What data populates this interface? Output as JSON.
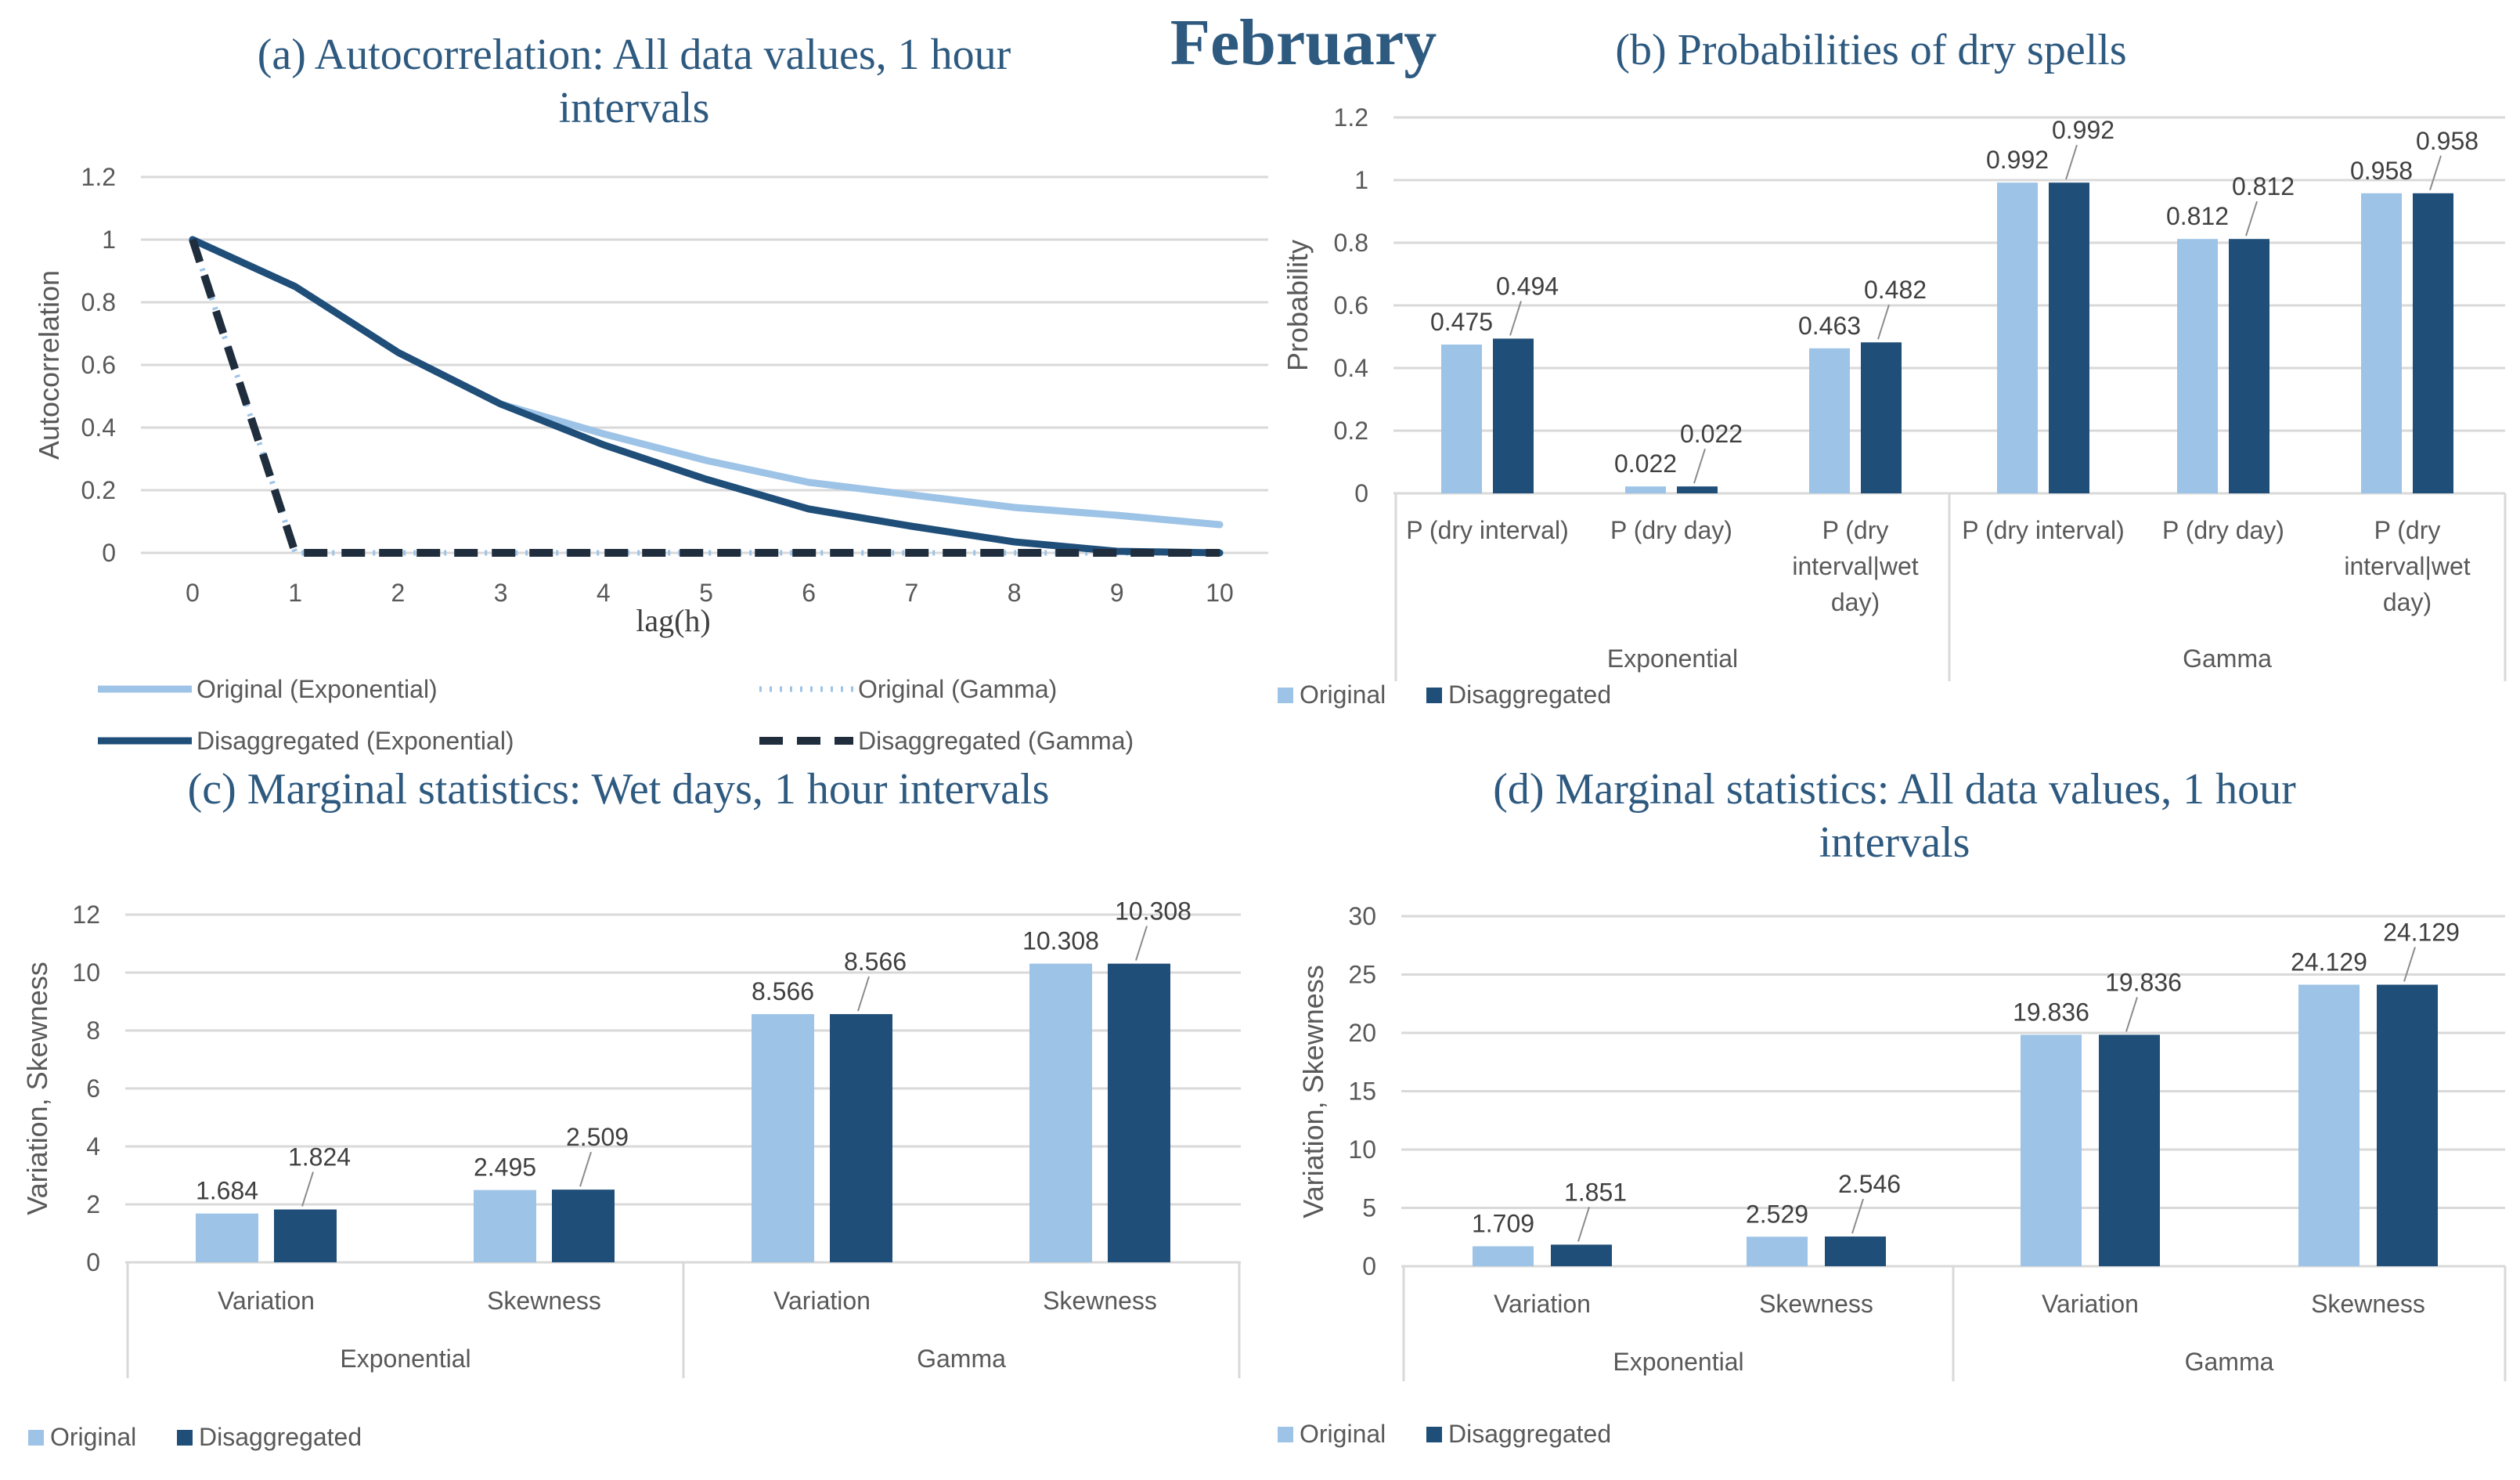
{
  "main_title": "February",
  "colors": {
    "title": "#2E5a80",
    "original": "#9DC3E6",
    "disaggregated": "#1F4E79",
    "grid": "#D9D9D9",
    "axis_text": "#595959",
    "label_text": "#404040"
  },
  "chart_data": [
    {
      "id": "a",
      "type": "line",
      "title": "(a) Autocorrelation: All data values, 1 hour intervals",
      "title_lines": [
        "(a) Autocorrelation: All data values, 1 hour",
        "intervals"
      ],
      "xlabel": "lag(h)",
      "ylabel": "Autocorrelation",
      "x": [
        0,
        1,
        2,
        3,
        4,
        5,
        6,
        7,
        8,
        9,
        10
      ],
      "x_ticks": [
        "0",
        "1",
        "2",
        "3",
        "4",
        "5",
        "6",
        "7",
        "8",
        "9",
        "10"
      ],
      "y_ticks": [
        "0",
        "0.2",
        "0.4",
        "0.6",
        "0.8",
        "1",
        "1.2"
      ],
      "ylim": [
        0,
        1.2
      ],
      "series": [
        {
          "name": "Original (Exponential)",
          "style": "solid-light",
          "values": [
            1.0,
            0.85,
            0.64,
            0.475,
            0.38,
            0.295,
            0.225,
            0.185,
            0.145,
            0.12,
            0.09
          ]
        },
        {
          "name": "Original (Gamma)",
          "style": "dotted-light",
          "values": [
            1.0,
            0,
            0,
            0,
            0,
            0,
            0,
            0,
            0,
            0,
            0
          ]
        },
        {
          "name": "Disaggregated (Exponential)",
          "style": "solid-dark",
          "values": [
            1.0,
            0.85,
            0.64,
            0.475,
            0.345,
            0.235,
            0.14,
            0.085,
            0.035,
            0.005,
            0.0
          ]
        },
        {
          "name": "Disaggregated (Gamma)",
          "style": "dashed-dark",
          "values": [
            1.0,
            0,
            0,
            0,
            0,
            0,
            0,
            0,
            0,
            0,
            0
          ]
        }
      ],
      "legend": "bottom"
    },
    {
      "id": "b",
      "type": "bar",
      "title": "(b) Probabilities of dry spells",
      "title_lines": [
        "(b) Probabilities of dry spells"
      ],
      "ylabel": "Probability",
      "y_ticks": [
        "0",
        "0.2",
        "0.4",
        "0.6",
        "0.8",
        "1",
        "1.2"
      ],
      "ylim": [
        0,
        1.2
      ],
      "groups": [
        "Exponential",
        "Gamma"
      ],
      "categories": [
        [
          "P (dry interval)"
        ],
        [
          "P (dry day)"
        ],
        [
          "P (dry",
          "interval|wet",
          "day)"
        ],
        [
          "P (dry interval)"
        ],
        [
          "P (dry day)"
        ],
        [
          "P (dry",
          "interval|wet",
          "day)"
        ]
      ],
      "series": [
        {
          "name": "Original",
          "values": [
            0.475,
            0.022,
            0.463,
            0.992,
            0.812,
            0.958
          ],
          "labels": [
            "0.475",
            "0.022",
            "0.463",
            "0.992",
            "0.812",
            "0.958"
          ]
        },
        {
          "name": "Disaggregated",
          "values": [
            0.494,
            0.022,
            0.482,
            0.992,
            0.812,
            0.958
          ],
          "labels": [
            "0.494",
            "0.022",
            "0.482",
            "0.992",
            "0.812",
            "0.958"
          ]
        }
      ],
      "legend": "bottom-left"
    },
    {
      "id": "c",
      "type": "bar",
      "title": "(c) Marginal statistics: Wet days, 1 hour intervals",
      "title_lines": [
        "(c) Marginal statistics: Wet days, 1 hour intervals"
      ],
      "ylabel": "Variation, Skewness",
      "y_ticks": [
        "0",
        "2",
        "4",
        "6",
        "8",
        "10",
        "12"
      ],
      "ylim": [
        0,
        12
      ],
      "groups": [
        "Exponential",
        "Gamma"
      ],
      "categories": [
        [
          "Variation"
        ],
        [
          "Skewness"
        ],
        [
          "Variation"
        ],
        [
          "Skewness"
        ]
      ],
      "series": [
        {
          "name": "Original",
          "values": [
            1.684,
            2.495,
            8.566,
            10.308
          ],
          "labels": [
            "1.684",
            "2.495",
            "8.566",
            "10.308"
          ]
        },
        {
          "name": "Disaggregated",
          "values": [
            1.824,
            2.509,
            8.566,
            10.308
          ],
          "labels": [
            "1.824",
            "2.509",
            "8.566",
            "10.308"
          ]
        }
      ],
      "legend": "bottom-left"
    },
    {
      "id": "d",
      "type": "bar",
      "title": "(d) Marginal statistics: All data values, 1 hour intervals",
      "title_lines": [
        "(d) Marginal statistics: All data values, 1 hour",
        "intervals"
      ],
      "ylabel": "Variation, Skewness",
      "y_ticks": [
        "0",
        "5",
        "10",
        "15",
        "20",
        "25",
        "30"
      ],
      "ylim": [
        0,
        30
      ],
      "groups": [
        "Exponential",
        "Gamma"
      ],
      "categories": [
        [
          "Variation"
        ],
        [
          "Skewness"
        ],
        [
          "Variation"
        ],
        [
          "Skewness"
        ]
      ],
      "series": [
        {
          "name": "Original",
          "values": [
            1.709,
            2.529,
            19.836,
            24.129
          ],
          "labels": [
            "1.709",
            "2.529",
            "19.836",
            "24.129"
          ]
        },
        {
          "name": "Disaggregated",
          "values": [
            1.851,
            2.546,
            19.836,
            24.129
          ],
          "labels": [
            "1.851",
            "2.546",
            "19.836",
            "24.129"
          ]
        }
      ],
      "legend": "bottom-left"
    }
  ]
}
